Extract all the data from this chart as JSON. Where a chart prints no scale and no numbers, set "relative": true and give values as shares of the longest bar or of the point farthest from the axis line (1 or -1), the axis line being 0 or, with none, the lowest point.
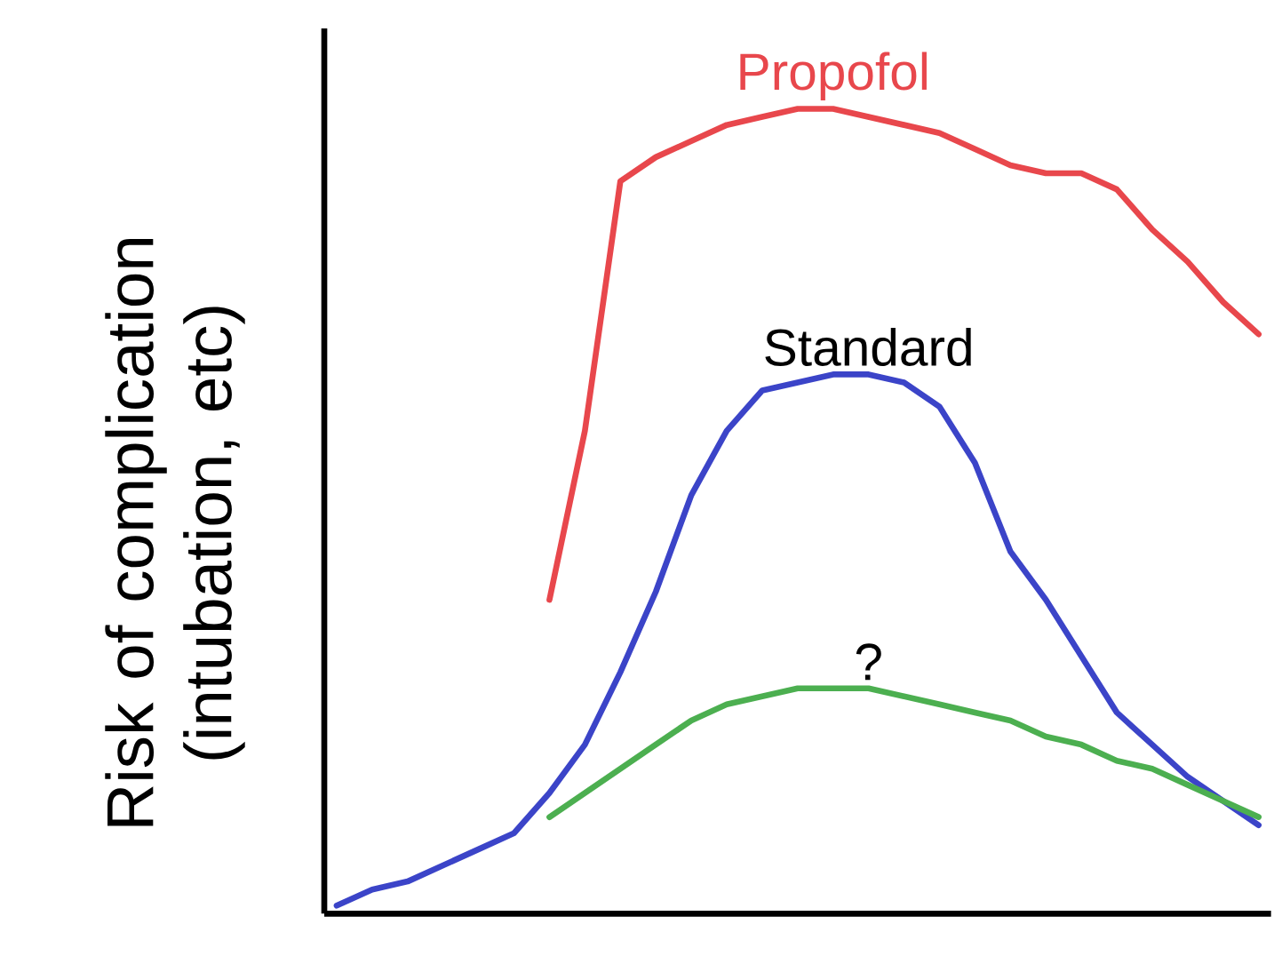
{
  "chart_data": {
    "type": "line",
    "relative": true,
    "ylabel": "Risk of complication (intubation, etc)",
    "categories": [
      null,
      null,
      null,
      null,
      null,
      null,
      null,
      null,
      null,
      null,
      null,
      null,
      null,
      null,
      null,
      null,
      null,
      null,
      null,
      null,
      null,
      null,
      null,
      null,
      null,
      null,
      null
    ],
    "series": [
      {
        "name": "Propofol",
        "color": "#e8474c",
        "values": [
          null,
          null,
          null,
          null,
          null,
          null,
          0.39,
          0.6,
          0.91,
          0.94,
          0.96,
          0.98,
          0.99,
          1.0,
          1.0,
          0.99,
          0.98,
          0.97,
          0.95,
          0.93,
          0.92,
          0.92,
          0.9,
          0.85,
          0.81,
          0.76,
          0.72
        ]
      },
      {
        "name": "Standard",
        "color": "#3b44c8",
        "values": [
          0.01,
          0.03,
          0.04,
          0.06,
          0.08,
          0.1,
          0.15,
          0.21,
          0.3,
          0.4,
          0.52,
          0.6,
          0.65,
          0.66,
          0.67,
          0.67,
          0.66,
          0.63,
          0.56,
          0.45,
          0.39,
          0.32,
          0.25,
          0.21,
          0.17,
          0.14,
          0.11
        ]
      },
      {
        "name": "?",
        "color": "#4caf50",
        "values": [
          null,
          null,
          null,
          null,
          null,
          null,
          0.12,
          0.15,
          0.18,
          0.21,
          0.24,
          0.26,
          0.27,
          0.28,
          0.28,
          0.28,
          0.27,
          0.26,
          0.25,
          0.24,
          0.22,
          0.21,
          0.19,
          0.18,
          0.16,
          0.14,
          0.12
        ]
      }
    ]
  }
}
